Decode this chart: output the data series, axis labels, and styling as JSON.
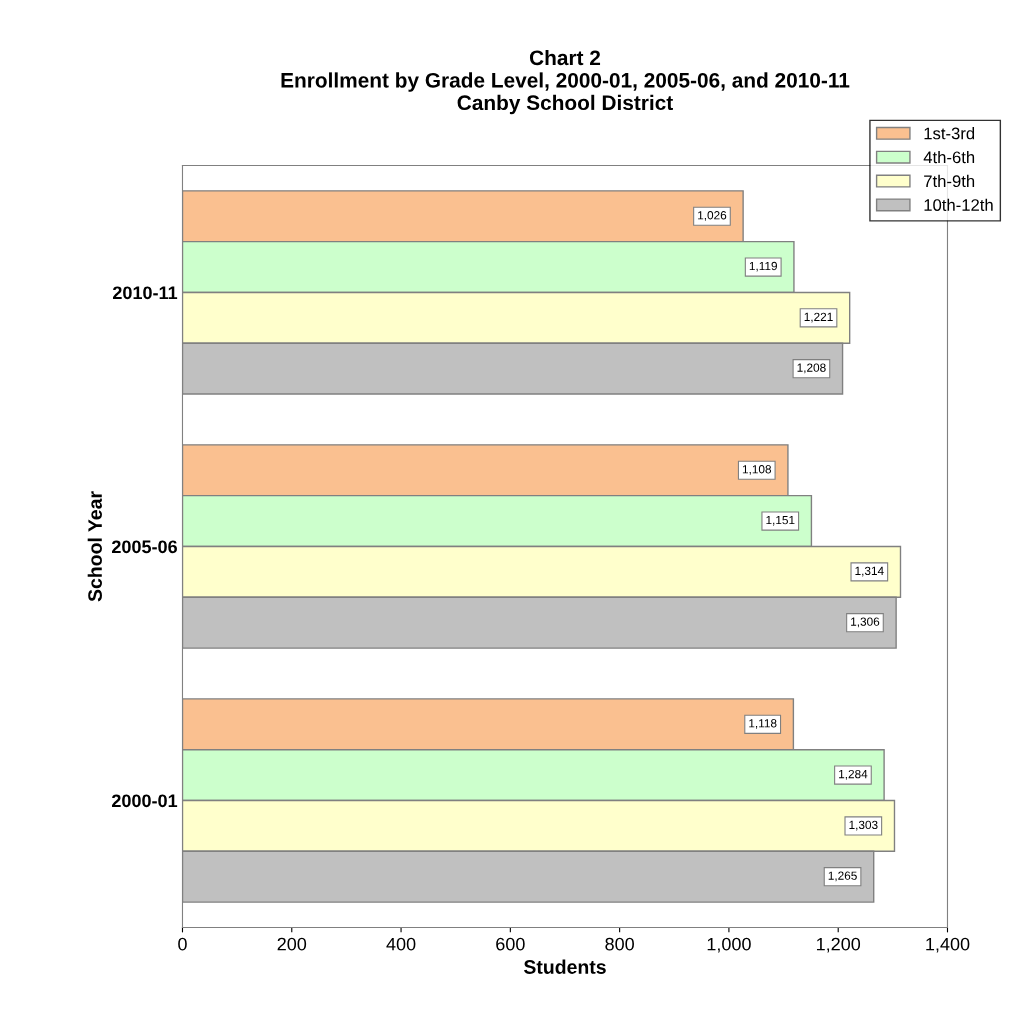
{
  "chart_data": {
    "type": "bar",
    "orientation": "horizontal",
    "title": "Chart 2\nEnrollment by Grade Level, 2000-01, 2005-06, and 2010-11\nCanby School District",
    "xlabel": "Students",
    "ylabel": "School Year",
    "categories": [
      "2010-11",
      "2005-06",
      "2000-01"
    ],
    "series": [
      {
        "name": "1st-3rd",
        "color": "#fac090",
        "values": [
          1026,
          1108,
          1118
        ],
        "value_labels": [
          "1,026",
          "1,108",
          "1,118"
        ]
      },
      {
        "name": "4th-6th",
        "color": "#ccffcc",
        "values": [
          1119,
          1151,
          1284
        ],
        "value_labels": [
          "1,119",
          "1,151",
          "1,284"
        ]
      },
      {
        "name": "7th-9th",
        "color": "#ffffcc",
        "values": [
          1221,
          1314,
          1303
        ],
        "value_labels": [
          "1,221",
          "1,314",
          "1,303"
        ]
      },
      {
        "name": "10th-12th",
        "color": "#c0c0c0",
        "values": [
          1208,
          1306,
          1265
        ],
        "value_labels": [
          "1,208",
          "1,306",
          "1,265"
        ]
      }
    ],
    "xlim": [
      0,
      1400
    ],
    "xticks": [
      0,
      200,
      400,
      600,
      800,
      {
        "value": 1000,
        "label": "1,000"
      },
      {
        "value": 1200,
        "label": "1,200"
      },
      {
        "value": 1400,
        "label": "1,400"
      }
    ],
    "grid": false,
    "legend": "top right"
  }
}
